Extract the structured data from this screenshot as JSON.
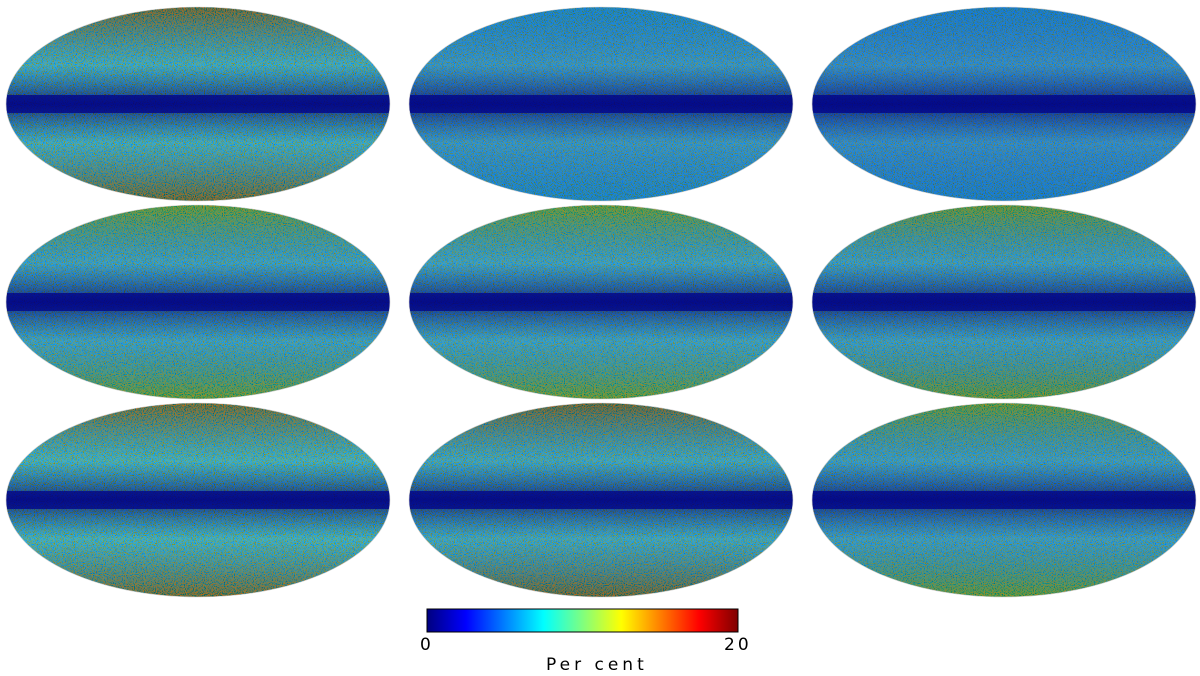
{
  "figure": {
    "grid": {
      "rows": 3,
      "columns": 3
    },
    "projection": "mollweide",
    "colormap": [
      "#00007f",
      "#0000ff",
      "#007fff",
      "#00ffff",
      "#7fff7f",
      "#ffff00",
      "#ff7f00",
      "#ff0000",
      "#7f0000"
    ],
    "background_color": "#ffffff"
  },
  "colorbar": {
    "min_label": "0",
    "max_label": "20",
    "unit_label": "Per cent",
    "orientation": "horizontal"
  },
  "panels": [
    {
      "name": "map-row1-col1",
      "high_latitude_level": 0.7
    },
    {
      "name": "map-row1-col2",
      "high_latitude_level": 0.42
    },
    {
      "name": "map-row1-col3",
      "high_latitude_level": 0.28
    },
    {
      "name": "map-row2-col1",
      "high_latitude_level": 0.55
    },
    {
      "name": "map-row2-col2",
      "high_latitude_level": 0.55
    },
    {
      "name": "map-row2-col3",
      "high_latitude_level": 0.5
    },
    {
      "name": "map-row3-col1",
      "high_latitude_level": 0.78
    },
    {
      "name": "map-row3-col2",
      "high_latitude_level": 0.65
    },
    {
      "name": "map-row3-col3",
      "high_latitude_level": 0.5
    }
  ]
}
